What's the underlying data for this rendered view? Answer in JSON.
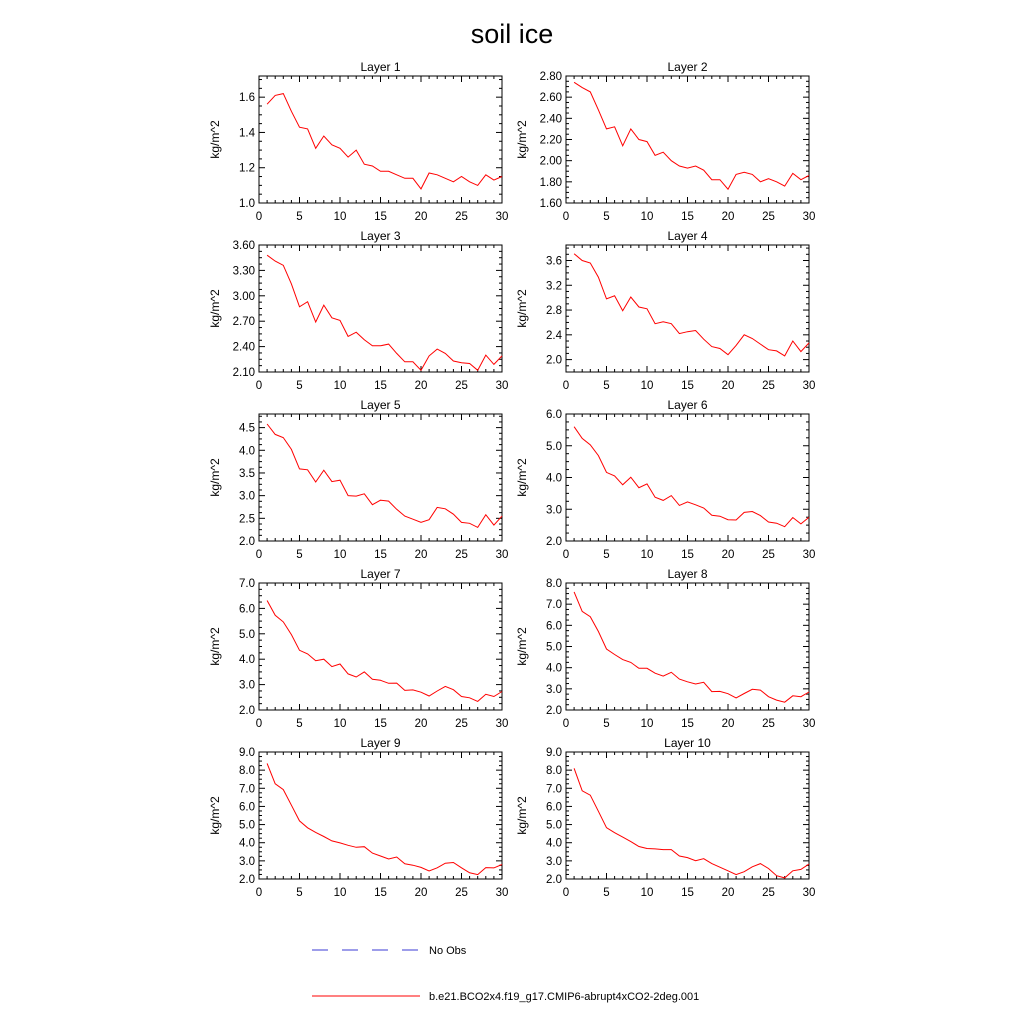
{
  "figure": {
    "title": "soil ice"
  },
  "colors": {
    "model_line": "#ff0000",
    "obs_line": "#3b3bd6",
    "axis": "#000000"
  },
  "legend": [
    {
      "label": "No Obs",
      "style": "dashed",
      "color": "#3b3bd6"
    },
    {
      "label": "b.e21.BCO2x4.f19_g17.CMIP6-abrupt4xCO2-2deg.001",
      "style": "solid",
      "color": "#ff0000"
    }
  ],
  "chart_data": [
    {
      "type": "line",
      "title": "Layer 1",
      "xlabel": "",
      "ylabel": "kg/m^2",
      "xlim": [
        0,
        30
      ],
      "ylim": [
        1.0,
        1.72
      ],
      "xticks": [
        0,
        5,
        10,
        15,
        20,
        25,
        30
      ],
      "yticks": [
        1.0,
        1.2,
        1.4,
        1.6
      ],
      "ytick_labels": [
        "1.0",
        "1.2",
        "1.4",
        "1.6"
      ],
      "series": [
        {
          "x": [
            1,
            2,
            3,
            4,
            5,
            6,
            7,
            8,
            9,
            10,
            11,
            12,
            13,
            14,
            15,
            16,
            17,
            18,
            19,
            20,
            21,
            22,
            23,
            24,
            25,
            26,
            27,
            28,
            29,
            30
          ],
          "values": [
            1.56,
            1.61,
            1.62,
            1.52,
            1.43,
            1.42,
            1.31,
            1.38,
            1.33,
            1.31,
            1.26,
            1.3,
            1.22,
            1.21,
            1.18,
            1.18,
            1.16,
            1.14,
            1.14,
            1.08,
            1.17,
            1.16,
            1.14,
            1.12,
            1.15,
            1.12,
            1.1,
            1.16,
            1.13,
            1.15
          ]
        }
      ]
    },
    {
      "type": "line",
      "title": "Layer 2",
      "xlabel": "",
      "ylabel": "kg/m^2",
      "xlim": [
        0,
        30
      ],
      "ylim": [
        1.6,
        2.8
      ],
      "xticks": [
        0,
        5,
        10,
        15,
        20,
        25,
        30
      ],
      "yticks": [
        1.6,
        1.8,
        2.0,
        2.2,
        2.4,
        2.6,
        2.8
      ],
      "ytick_labels": [
        "1.60",
        "1.80",
        "2.00",
        "2.20",
        "2.40",
        "2.60",
        "2.80"
      ],
      "series": [
        {
          "x": [
            1,
            2,
            3,
            4,
            5,
            6,
            7,
            8,
            9,
            10,
            11,
            12,
            13,
            14,
            15,
            16,
            17,
            18,
            19,
            20,
            21,
            22,
            23,
            24,
            25,
            26,
            27,
            28,
            29,
            30
          ],
          "values": [
            2.74,
            2.69,
            2.65,
            2.48,
            2.3,
            2.32,
            2.14,
            2.3,
            2.2,
            2.18,
            2.05,
            2.08,
            2.0,
            1.95,
            1.93,
            1.95,
            1.91,
            1.82,
            1.82,
            1.73,
            1.87,
            1.89,
            1.87,
            1.8,
            1.83,
            1.8,
            1.76,
            1.88,
            1.82,
            1.86
          ]
        }
      ]
    },
    {
      "type": "line",
      "title": "Layer 3",
      "xlabel": "",
      "ylabel": "kg/m^2",
      "xlim": [
        0,
        30
      ],
      "ylim": [
        2.1,
        3.6
      ],
      "xticks": [
        0,
        5,
        10,
        15,
        20,
        25,
        30
      ],
      "yticks": [
        2.1,
        2.4,
        2.7,
        3.0,
        3.3,
        3.6
      ],
      "ytick_labels": [
        "2.10",
        "2.40",
        "2.70",
        "3.00",
        "3.30",
        "3.60"
      ],
      "series": [
        {
          "x": [
            1,
            2,
            3,
            4,
            5,
            6,
            7,
            8,
            9,
            10,
            11,
            12,
            13,
            14,
            15,
            16,
            17,
            18,
            19,
            20,
            21,
            22,
            23,
            24,
            25,
            26,
            27,
            28,
            29,
            30
          ],
          "values": [
            3.48,
            3.41,
            3.36,
            3.14,
            2.87,
            2.93,
            2.69,
            2.89,
            2.74,
            2.71,
            2.52,
            2.57,
            2.48,
            2.41,
            2.41,
            2.43,
            2.32,
            2.22,
            2.22,
            2.12,
            2.29,
            2.37,
            2.32,
            2.23,
            2.21,
            2.2,
            2.12,
            2.3,
            2.19,
            2.29
          ]
        }
      ]
    },
    {
      "type": "line",
      "title": "Layer 4",
      "xlabel": "",
      "ylabel": "kg/m^2",
      "xlim": [
        0,
        30
      ],
      "ylim": [
        1.8,
        3.85
      ],
      "xticks": [
        0,
        5,
        10,
        15,
        20,
        25,
        30
      ],
      "yticks": [
        2.0,
        2.4,
        2.8,
        3.2,
        3.6
      ],
      "ytick_labels": [
        "2.0",
        "2.4",
        "2.8",
        "3.2",
        "3.6"
      ],
      "series": [
        {
          "x": [
            1,
            2,
            3,
            4,
            5,
            6,
            7,
            8,
            9,
            10,
            11,
            12,
            13,
            14,
            15,
            16,
            17,
            18,
            19,
            20,
            21,
            22,
            23,
            24,
            25,
            26,
            27,
            28,
            29,
            30
          ],
          "values": [
            3.71,
            3.6,
            3.56,
            3.33,
            2.98,
            3.03,
            2.79,
            3.01,
            2.85,
            2.82,
            2.58,
            2.61,
            2.58,
            2.42,
            2.45,
            2.47,
            2.33,
            2.21,
            2.18,
            2.08,
            2.23,
            2.4,
            2.34,
            2.25,
            2.16,
            2.14,
            2.06,
            2.3,
            2.13,
            2.27
          ]
        }
      ]
    },
    {
      "type": "line",
      "title": "Layer 5",
      "xlabel": "",
      "ylabel": "kg/m^2",
      "xlim": [
        0,
        30
      ],
      "ylim": [
        2.0,
        4.8
      ],
      "xticks": [
        0,
        5,
        10,
        15,
        20,
        25,
        30
      ],
      "yticks": [
        2.0,
        2.5,
        3.0,
        3.5,
        4.0,
        4.5
      ],
      "ytick_labels": [
        "2.0",
        "2.5",
        "3.0",
        "3.5",
        "4.0",
        "4.5"
      ],
      "series": [
        {
          "x": [
            1,
            2,
            3,
            4,
            5,
            6,
            7,
            8,
            9,
            10,
            11,
            12,
            13,
            14,
            15,
            16,
            17,
            18,
            19,
            20,
            21,
            22,
            23,
            24,
            25,
            26,
            27,
            28,
            29,
            30
          ],
          "values": [
            4.58,
            4.35,
            4.28,
            4.02,
            3.59,
            3.57,
            3.3,
            3.56,
            3.31,
            3.34,
            3.0,
            2.99,
            3.04,
            2.8,
            2.9,
            2.88,
            2.7,
            2.55,
            2.48,
            2.41,
            2.47,
            2.74,
            2.71,
            2.59,
            2.41,
            2.39,
            2.3,
            2.58,
            2.35,
            2.55
          ]
        }
      ]
    },
    {
      "type": "line",
      "title": "Layer 6",
      "xlabel": "",
      "ylabel": "kg/m^2",
      "xlim": [
        0,
        30
      ],
      "ylim": [
        2.0,
        6.0
      ],
      "xticks": [
        0,
        5,
        10,
        15,
        20,
        25,
        30
      ],
      "yticks": [
        2.0,
        3.0,
        4.0,
        5.0,
        6.0
      ],
      "ytick_labels": [
        "2.0",
        "3.0",
        "4.0",
        "5.0",
        "6.0"
      ],
      "series": [
        {
          "x": [
            1,
            2,
            3,
            4,
            5,
            6,
            7,
            8,
            9,
            10,
            11,
            12,
            13,
            14,
            15,
            16,
            17,
            18,
            19,
            20,
            21,
            22,
            23,
            24,
            25,
            26,
            27,
            28,
            29,
            30
          ],
          "values": [
            5.6,
            5.23,
            5.03,
            4.69,
            4.16,
            4.05,
            3.77,
            4.01,
            3.68,
            3.8,
            3.38,
            3.28,
            3.43,
            3.12,
            3.23,
            3.14,
            3.04,
            2.81,
            2.78,
            2.67,
            2.66,
            2.9,
            2.93,
            2.8,
            2.6,
            2.56,
            2.45,
            2.74,
            2.54,
            2.75
          ]
        }
      ]
    },
    {
      "type": "line",
      "title": "Layer 7",
      "xlabel": "",
      "ylabel": "kg/m^2",
      "xlim": [
        0,
        30
      ],
      "ylim": [
        2.0,
        7.0
      ],
      "xticks": [
        0,
        5,
        10,
        15,
        20,
        25,
        30
      ],
      "yticks": [
        2.0,
        3.0,
        4.0,
        5.0,
        6.0,
        7.0
      ],
      "ytick_labels": [
        "2.0",
        "3.0",
        "4.0",
        "5.0",
        "6.0",
        "7.0"
      ],
      "series": [
        {
          "x": [
            1,
            2,
            3,
            4,
            5,
            6,
            7,
            8,
            9,
            10,
            11,
            12,
            13,
            14,
            15,
            16,
            17,
            18,
            19,
            20,
            21,
            22,
            23,
            24,
            25,
            26,
            27,
            28,
            29,
            30
          ],
          "values": [
            6.31,
            5.73,
            5.47,
            4.97,
            4.35,
            4.21,
            3.94,
            4.0,
            3.71,
            3.81,
            3.42,
            3.3,
            3.5,
            3.21,
            3.17,
            3.05,
            3.06,
            2.77,
            2.79,
            2.7,
            2.55,
            2.75,
            2.93,
            2.8,
            2.53,
            2.48,
            2.34,
            2.62,
            2.53,
            2.73
          ]
        }
      ]
    },
    {
      "type": "line",
      "title": "Layer 8",
      "xlabel": "",
      "ylabel": "kg/m^2",
      "xlim": [
        0,
        30
      ],
      "ylim": [
        2.0,
        8.0
      ],
      "xticks": [
        0,
        5,
        10,
        15,
        20,
        25,
        30
      ],
      "yticks": [
        2.0,
        3.0,
        4.0,
        5.0,
        6.0,
        7.0,
        8.0
      ],
      "ytick_labels": [
        "2.0",
        "3.0",
        "4.0",
        "5.0",
        "6.0",
        "7.0",
        "8.0"
      ],
      "series": [
        {
          "x": [
            1,
            2,
            3,
            4,
            5,
            6,
            7,
            8,
            9,
            10,
            11,
            12,
            13,
            14,
            15,
            16,
            17,
            18,
            19,
            20,
            21,
            22,
            23,
            24,
            25,
            26,
            27,
            28,
            29,
            30
          ],
          "values": [
            7.58,
            6.66,
            6.41,
            5.71,
            4.88,
            4.62,
            4.38,
            4.25,
            3.97,
            3.97,
            3.74,
            3.6,
            3.78,
            3.46,
            3.33,
            3.23,
            3.31,
            2.87,
            2.88,
            2.77,
            2.57,
            2.78,
            2.98,
            2.94,
            2.63,
            2.47,
            2.37,
            2.67,
            2.63,
            2.85
          ]
        }
      ]
    },
    {
      "type": "line",
      "title": "Layer 9",
      "xlabel": "",
      "ylabel": "kg/m^2",
      "xlim": [
        0,
        30
      ],
      "ylim": [
        2.0,
        9.0
      ],
      "xticks": [
        0,
        5,
        10,
        15,
        20,
        25,
        30
      ],
      "yticks": [
        2.0,
        3.0,
        4.0,
        5.0,
        6.0,
        7.0,
        8.0,
        9.0
      ],
      "ytick_labels": [
        "2.0",
        "3.0",
        "4.0",
        "5.0",
        "6.0",
        "7.0",
        "8.0",
        "9.0"
      ],
      "series": [
        {
          "x": [
            1,
            2,
            3,
            4,
            5,
            6,
            7,
            8,
            9,
            10,
            11,
            12,
            13,
            14,
            15,
            16,
            17,
            18,
            19,
            20,
            21,
            22,
            23,
            24,
            25,
            26,
            27,
            28,
            29,
            30
          ],
          "values": [
            8.37,
            7.25,
            6.93,
            6.07,
            5.2,
            4.82,
            4.57,
            4.34,
            4.1,
            3.99,
            3.86,
            3.75,
            3.78,
            3.43,
            3.27,
            3.1,
            3.21,
            2.84,
            2.76,
            2.64,
            2.44,
            2.62,
            2.87,
            2.91,
            2.62,
            2.34,
            2.24,
            2.63,
            2.61,
            2.8
          ]
        }
      ]
    },
    {
      "type": "line",
      "title": "Layer 10",
      "xlabel": "",
      "ylabel": "kg/m^2",
      "xlim": [
        0,
        30
      ],
      "ylim": [
        2.0,
        9.0
      ],
      "xticks": [
        0,
        5,
        10,
        15,
        20,
        25,
        30
      ],
      "yticks": [
        2.0,
        3.0,
        4.0,
        5.0,
        6.0,
        7.0,
        8.0,
        9.0
      ],
      "ytick_labels": [
        "2.0",
        "3.0",
        "4.0",
        "5.0",
        "6.0",
        "7.0",
        "8.0",
        "9.0"
      ],
      "series": [
        {
          "x": [
            1,
            2,
            3,
            4,
            5,
            6,
            7,
            8,
            9,
            10,
            11,
            12,
            13,
            14,
            15,
            16,
            17,
            18,
            19,
            20,
            21,
            22,
            23,
            24,
            25,
            26,
            27,
            28,
            29,
            30
          ],
          "values": [
            8.1,
            6.86,
            6.62,
            5.73,
            4.83,
            4.55,
            4.31,
            4.06,
            3.79,
            3.68,
            3.66,
            3.62,
            3.62,
            3.27,
            3.18,
            3.01,
            3.12,
            2.85,
            2.65,
            2.45,
            2.24,
            2.4,
            2.67,
            2.85,
            2.58,
            2.18,
            2.06,
            2.45,
            2.53,
            2.82
          ]
        }
      ]
    }
  ]
}
